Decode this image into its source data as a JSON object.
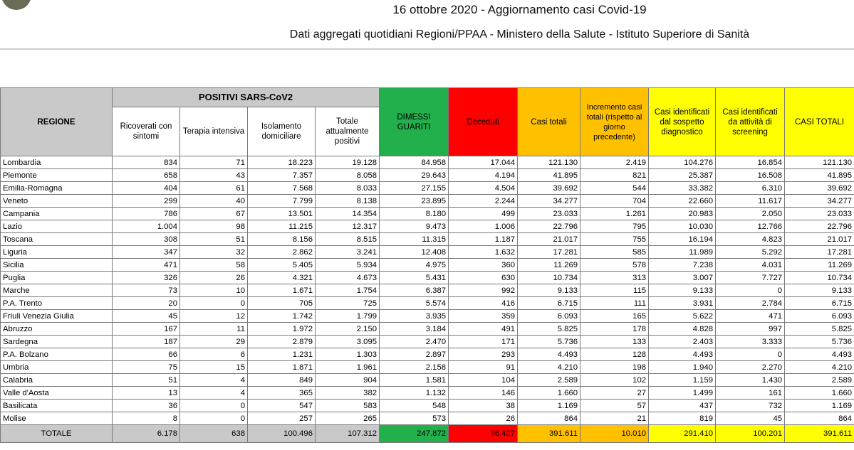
{
  "header": {
    "title": "16 ottobre 2020 - Aggiornamento casi Covid-19",
    "subtitle": "Dati aggregati quotidiani Regioni/PPAA - Ministero della Salute - Istituto Superiore di Sanità"
  },
  "table": {
    "group_header": "POSITIVI SARS-CoV2",
    "columns": [
      "REGIONE",
      "Ricoverati con sintomi",
      "Terapia intensiva",
      "Isolamento domiciliare",
      "Totale attualmente positivi",
      "DIMESSI GUARITI",
      "Deceduti",
      "Casi totali",
      "Incremento casi totali (rispetto al giorno precedente)",
      "Casi identificati dal sospetto diagnostico",
      "Casi identificati da attività di screening",
      "CASI TOTALI"
    ],
    "rows": [
      [
        "Lombardia",
        "834",
        "71",
        "18.223",
        "19.128",
        "84.958",
        "17.044",
        "121.130",
        "2.419",
        "104.276",
        "16.854",
        "121.130"
      ],
      [
        "Piemonte",
        "658",
        "43",
        "7.357",
        "8.058",
        "29.643",
        "4.194",
        "41.895",
        "821",
        "25.387",
        "16.508",
        "41.895"
      ],
      [
        "Emilia-Romagna",
        "404",
        "61",
        "7.568",
        "8.033",
        "27.155",
        "4.504",
        "39.692",
        "544",
        "33.382",
        "6.310",
        "39.692"
      ],
      [
        "Veneto",
        "299",
        "40",
        "7.799",
        "8.138",
        "23.895",
        "2.244",
        "34.277",
        "704",
        "22.660",
        "11.617",
        "34.277"
      ],
      [
        "Campania",
        "786",
        "67",
        "13.501",
        "14.354",
        "8.180",
        "499",
        "23.033",
        "1.261",
        "20.983",
        "2.050",
        "23.033"
      ],
      [
        "Lazio",
        "1.004",
        "98",
        "11.215",
        "12.317",
        "9.473",
        "1.006",
        "22.796",
        "795",
        "10.030",
        "12.766",
        "22.796"
      ],
      [
        "Toscana",
        "308",
        "51",
        "8.156",
        "8.515",
        "11.315",
        "1.187",
        "21.017",
        "755",
        "16.194",
        "4.823",
        "21.017"
      ],
      [
        "Liguria",
        "347",
        "32",
        "2.862",
        "3.241",
        "12.408",
        "1.632",
        "17.281",
        "585",
        "11.989",
        "5.292",
        "17.281"
      ],
      [
        "Sicilia",
        "471",
        "58",
        "5.405",
        "5.934",
        "4.975",
        "360",
        "11.269",
        "578",
        "7.238",
        "4.031",
        "11.269"
      ],
      [
        "Puglia",
        "326",
        "26",
        "4.321",
        "4.673",
        "5.431",
        "630",
        "10.734",
        "313",
        "3.007",
        "7.727",
        "10.734"
      ],
      [
        "Marche",
        "73",
        "10",
        "1.671",
        "1.754",
        "6.387",
        "992",
        "9.133",
        "115",
        "9.133",
        "0",
        "9.133"
      ],
      [
        "P.A. Trento",
        "20",
        "0",
        "705",
        "725",
        "5.574",
        "416",
        "6.715",
        "111",
        "3.931",
        "2.784",
        "6.715"
      ],
      [
        "Friuli Venezia Giulia",
        "45",
        "12",
        "1.742",
        "1.799",
        "3.935",
        "359",
        "6.093",
        "165",
        "5.622",
        "471",
        "6.093"
      ],
      [
        "Abruzzo",
        "167",
        "11",
        "1.972",
        "2.150",
        "3.184",
        "491",
        "5.825",
        "178",
        "4.828",
        "997",
        "5.825"
      ],
      [
        "Sardegna",
        "187",
        "29",
        "2.879",
        "3.095",
        "2.470",
        "171",
        "5.736",
        "133",
        "2.403",
        "3.333",
        "5.736"
      ],
      [
        "P.A. Bolzano",
        "66",
        "6",
        "1.231",
        "1.303",
        "2.897",
        "293",
        "4.493",
        "128",
        "4.493",
        "0",
        "4.493"
      ],
      [
        "Umbria",
        "75",
        "15",
        "1.871",
        "1.961",
        "2.158",
        "91",
        "4.210",
        "198",
        "1.940",
        "2.270",
        "4.210"
      ],
      [
        "Calabria",
        "51",
        "4",
        "849",
        "904",
        "1.581",
        "104",
        "2.589",
        "102",
        "1.159",
        "1.430",
        "2.589"
      ],
      [
        "Valle d'Aosta",
        "13",
        "4",
        "365",
        "382",
        "1.132",
        "146",
        "1.660",
        "27",
        "1.499",
        "161",
        "1.660"
      ],
      [
        "Basilicata",
        "36",
        "0",
        "547",
        "583",
        "548",
        "38",
        "1.169",
        "57",
        "437",
        "732",
        "1.169"
      ],
      [
        "Molise",
        "8",
        "0",
        "257",
        "265",
        "573",
        "26",
        "864",
        "21",
        "819",
        "45",
        "864"
      ]
    ],
    "total": [
      "TOTALE",
      "6.178",
      "638",
      "100.496",
      "107.312",
      "247.872",
      "36.427",
      "391.611",
      "10.010",
      "291.410",
      "100.201",
      "391.611"
    ]
  }
}
